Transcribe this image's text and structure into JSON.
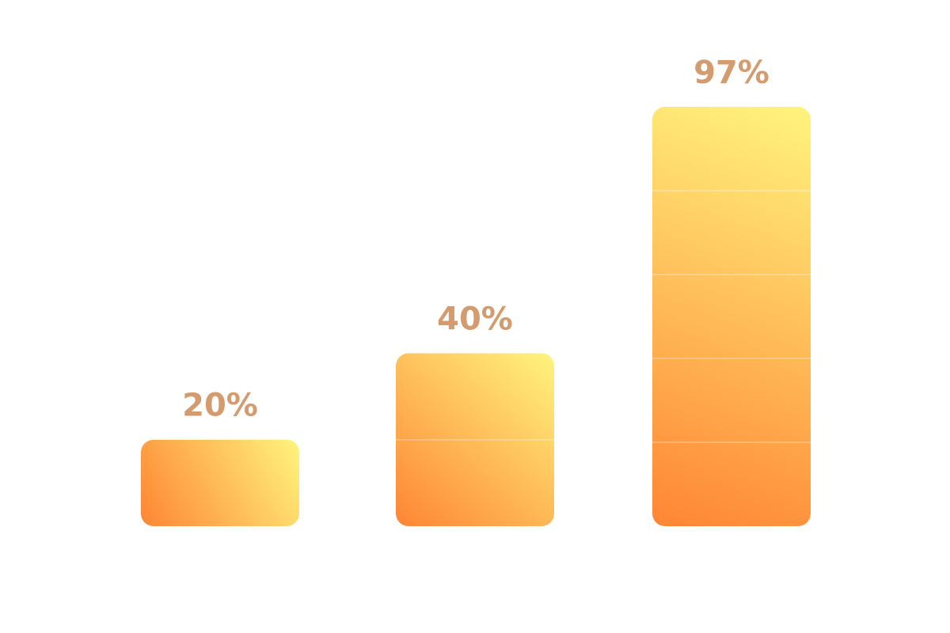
{
  "chart_data": {
    "type": "bar",
    "categories": [
      "",
      "",
      ""
    ],
    "values": [
      20,
      40,
      97
    ],
    "data_labels": [
      "20%",
      "40%",
      "97%"
    ],
    "title": "",
    "xlabel": "",
    "ylabel": "",
    "ylim": [
      0,
      100
    ],
    "grid": false,
    "legend": "none",
    "segment_divisions": [
      1,
      2,
      5
    ]
  },
  "colors": {
    "bar_gradient_start": "#FF8534",
    "bar_gradient_end": "#FFF47E",
    "label": "#D39B6E",
    "segment_line": "#FFFFFF"
  }
}
